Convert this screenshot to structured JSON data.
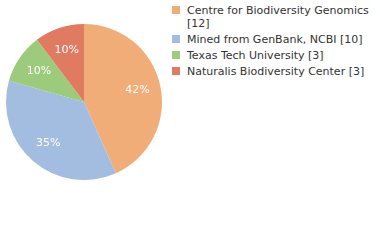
{
  "chart_data": {
    "type": "pie",
    "categories": [
      "Centre for Biodiversity Genomics [12]",
      "Mined from GenBank, NCBI [10]",
      "Texas Tech University [3]",
      "Naturalis Biodiversity Center [3]"
    ],
    "values": [
      42,
      35,
      10,
      10
    ],
    "value_labels": [
      "42%",
      "35%",
      "10%",
      "10%"
    ],
    "colors": [
      "#f0ad78",
      "#a3bde0",
      "#9ccb7c",
      "#e07b62"
    ],
    "data_labels": true,
    "legend": "right"
  }
}
